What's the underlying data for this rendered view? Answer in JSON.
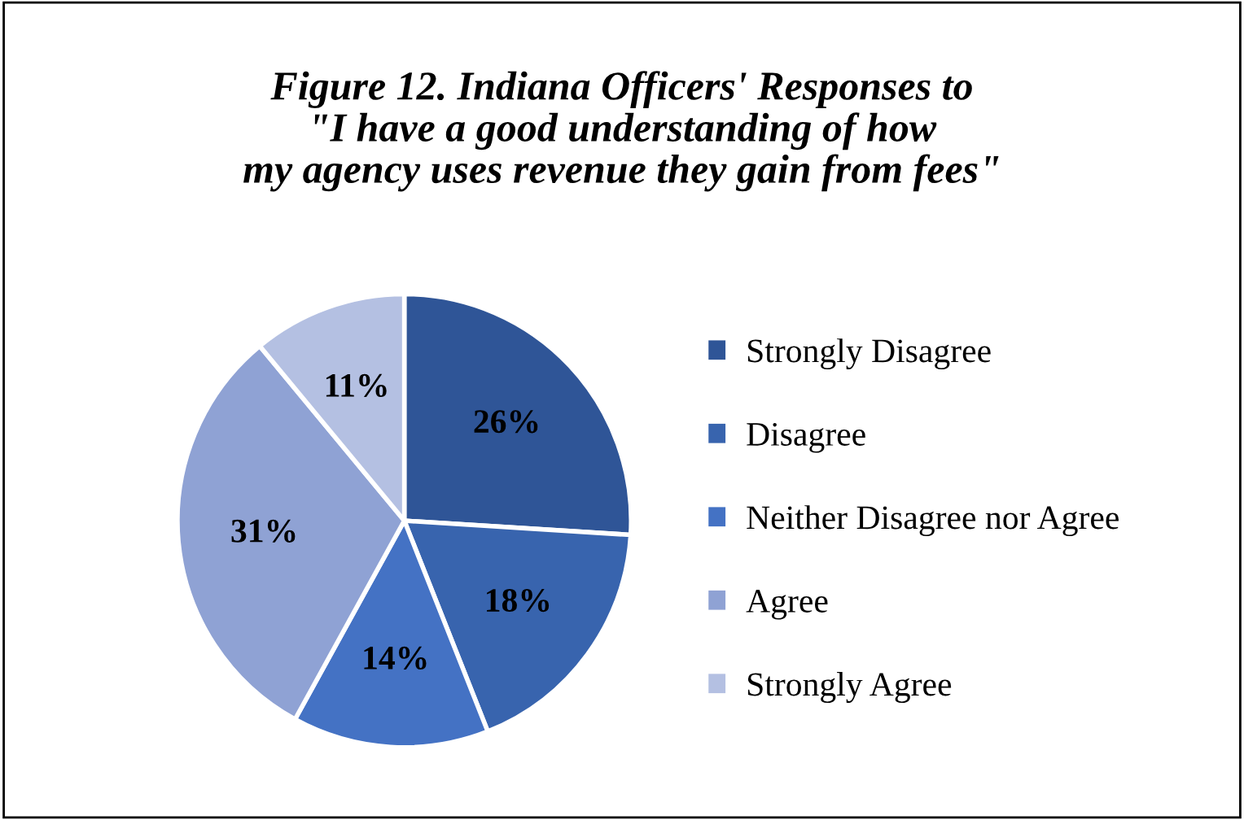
{
  "chart_data": {
    "type": "pie",
    "title": "Figure 12. Indiana Officers' Responses to\n\"I have a good understanding of how\nmy agency uses revenue they gain from fees\"",
    "categories": [
      "Strongly Disagree",
      "Disagree",
      "Neither Disagree nor Agree",
      "Agree",
      "Strongly Agree"
    ],
    "values": [
      26,
      18,
      14,
      31,
      11
    ],
    "colors": [
      "#2f5597",
      "#3864ae",
      "#4472c4",
      "#8fa2d4",
      "#b4c0e2"
    ],
    "value_labels": [
      "26%",
      "18%",
      "14%",
      "31%",
      "11%"
    ],
    "legend": "right"
  }
}
